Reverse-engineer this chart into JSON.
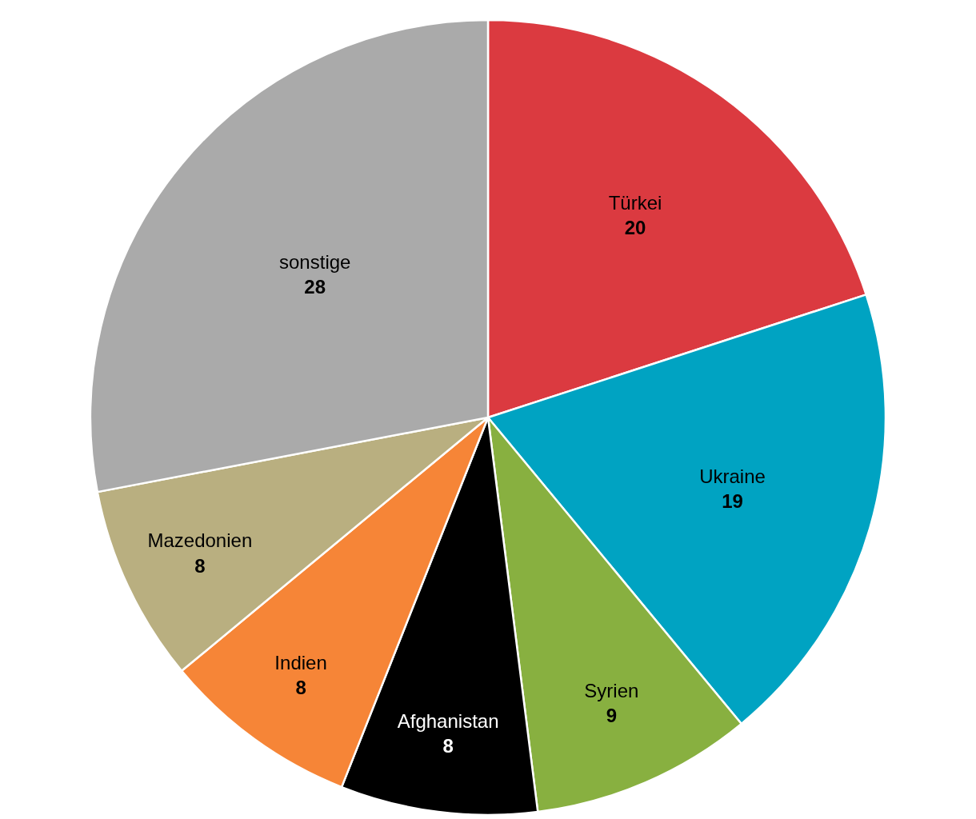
{
  "chart_data": {
    "type": "pie",
    "categories": [
      "Türkei",
      "Ukraine",
      "Syrien",
      "Afghanistan",
      "Indien",
      "Mazedonien",
      "sonstige"
    ],
    "values": [
      20,
      19,
      9,
      8,
      8,
      8,
      28
    ],
    "colors": [
      "#db3a40",
      "#00a3c2",
      "#88b040",
      "#000000",
      "#f68537",
      "#b9af80",
      "#aaaaaa"
    ],
    "data_labels": true,
    "legend": false
  }
}
